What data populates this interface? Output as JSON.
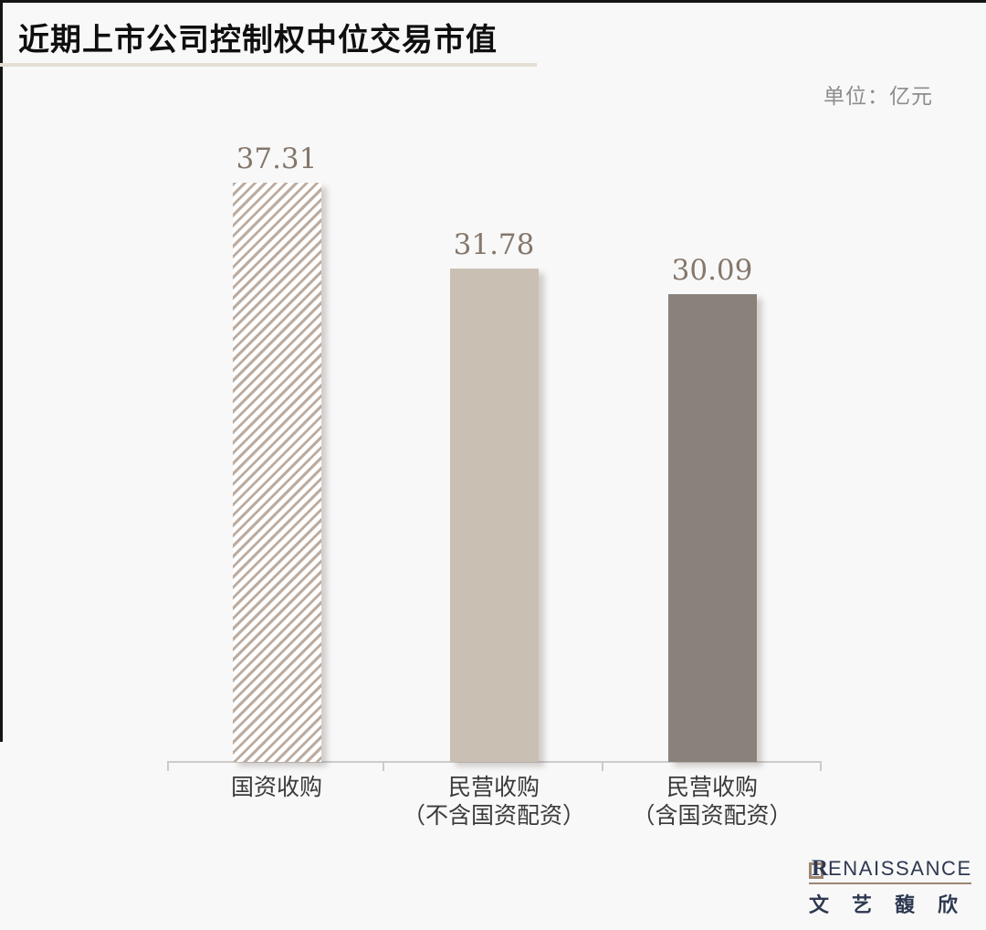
{
  "page": {
    "title": "近期上市公司控制权中位交易市值",
    "unit_label": "单位：亿元"
  },
  "chart_data": {
    "type": "bar",
    "title": "近期上市公司控制权中位交易市值",
    "unit": "亿元",
    "categories": [
      "国资收购",
      "民营收购（不含国资配资）",
      "民营收购（含国资配资）"
    ],
    "category_label_lines": [
      [
        "国资收购"
      ],
      [
        "民营收购",
        "（不含国资配资）"
      ],
      [
        "民营收购",
        "（含国资配资）"
      ]
    ],
    "values": [
      37.31,
      31.78,
      30.09
    ],
    "value_labels": [
      "37.31",
      "31.78",
      "30.09"
    ],
    "bar_styles": [
      "hatched",
      "solid",
      "solid"
    ],
    "bar_colors": [
      "#bcaca0",
      "#cabfb3",
      "#8b817b"
    ],
    "value_label_color": "#85776b",
    "ylim": [
      0,
      40
    ],
    "grid": false,
    "legend": false,
    "axis_color": "#cbcbcb"
  },
  "logo": {
    "brand_r": "R",
    "brand_en_rest": "ENAISSANCE",
    "brand_cn": "文艺馥欣",
    "navy": "#2e3951",
    "brown": "#9b8572"
  },
  "colors": {
    "background": "#f8f8f8",
    "top_border": "#151515",
    "title_underline": "#e5ded5",
    "unit_text": "#8d8d8d",
    "category_text": "#3a3a3a"
  }
}
